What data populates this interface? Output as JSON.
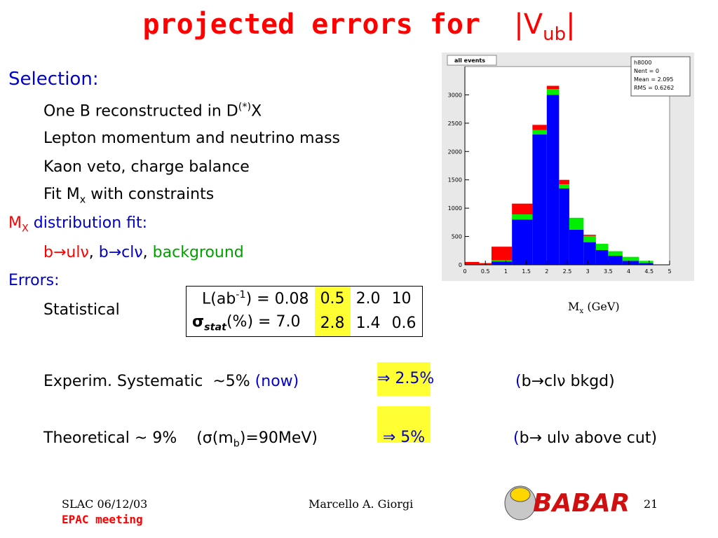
{
  "title": {
    "main": "projected errors for",
    "v": "|V",
    "sub": "ub",
    "end": "|"
  },
  "selection": {
    "heading": "Selection:",
    "item0": {
      "text": "One B reconstructed in D",
      "sup": "(*)",
      "end": "X"
    },
    "item1": "Lepton momentum and neutrino mass",
    "item2": "Kaon veto, charge balance",
    "item3": {
      "text": "Fit M",
      "sub": "x",
      "end": " with constraints"
    }
  },
  "fit": {
    "m": "M",
    "sub": "X",
    "text": " distribution fit:",
    "ul": "b→ulν",
    "comma": ", ",
    "cl": "b→clν",
    "comma2": ", ",
    "bg": "background"
  },
  "errors": {
    "heading": "Errors:",
    "statistical": "Statistical",
    "table": {
      "row0": {
        "label": "L(ab",
        "sup": "-1",
        "label_end": ") = 0.08",
        "cells": [
          "0.5",
          "2.0",
          "10"
        ]
      },
      "row1": {
        "label": "σ",
        "sub": "stat",
        "label_end": "(%) = 7.0",
        "cells": [
          "2.8",
          "1.4",
          "0.6"
        ]
      }
    },
    "experim": {
      "text": "Experim. Systematic  ~5% ",
      "now": "(now)",
      "result": "⇒ 2.5%",
      "paren": "(",
      "note": "b→clν bkgd)"
    },
    "theo": {
      "text": "Theoretical ~ 9%    (σ(m",
      "sub": "b",
      "end": ")=90MeV)",
      "result": "⇒ 5%",
      "paren": "(",
      "note": "b→ ulν above cut)"
    }
  },
  "footer": {
    "place": "SLAC 06/12/03",
    "meeting": "EPAC meeting",
    "author": "Marcello A. Giorgi",
    "page": "21",
    "logo": "BABAR"
  },
  "chart_data": {
    "type": "histogram",
    "label": "all events",
    "stats": [
      "h8000",
      "Nent = 0",
      "Mean = 2.095",
      "RMS = 0.6262"
    ],
    "xlabel": {
      "main": "M",
      "sub": "x",
      "unit": " (GeV)"
    },
    "bins": [
      0,
      0.35,
      0.65,
      1.15,
      1.65,
      2.0,
      2.3,
      2.55,
      2.9,
      3.2,
      3.5,
      3.85,
      4.25,
      4.6
    ],
    "series": [
      {
        "color": "#0000ff",
        "values": [
          0,
          0,
          60,
          800,
          2300,
          3000,
          1350,
          620,
          400,
          260,
          160,
          70,
          30
        ]
      },
      {
        "color": "#00ee00",
        "values": [
          0,
          0,
          20,
          90,
          80,
          100,
          70,
          210,
          110,
          110,
          80,
          70,
          40
        ]
      },
      {
        "color": "#ff0000",
        "values": [
          50,
          30,
          240,
          190,
          90,
          60,
          80,
          0,
          20,
          0,
          0,
          0,
          0
        ]
      }
    ],
    "xlim": [
      0,
      5
    ],
    "ylim": [
      0,
      3500
    ],
    "xticks": [
      0,
      0.5,
      1,
      1.5,
      2,
      2.5,
      3,
      3.5,
      4,
      4.5,
      5
    ],
    "yticks": [
      0,
      500,
      1000,
      1500,
      2000,
      2500,
      3000
    ]
  }
}
